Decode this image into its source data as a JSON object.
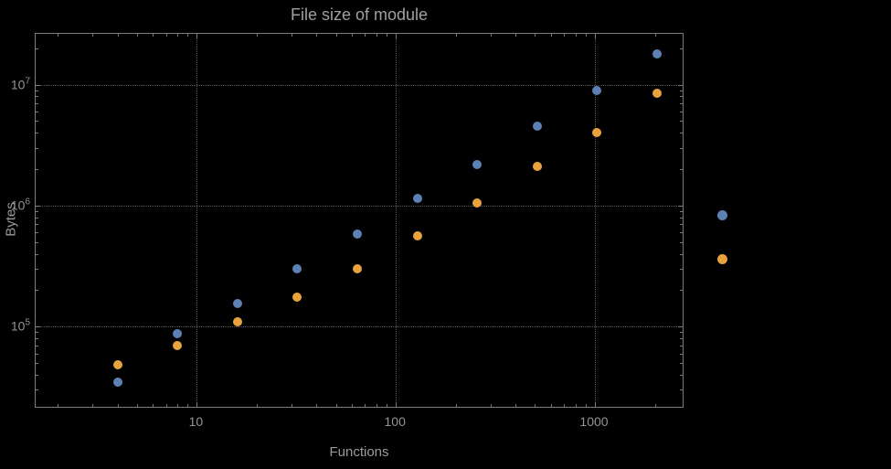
{
  "chart_data": {
    "type": "scatter",
    "title": "File size of module",
    "xlabel": "Functions",
    "ylabel": "Bytes",
    "x_scale": "log",
    "y_scale": "log",
    "grid": "dotted",
    "x_ticks": [
      10,
      100,
      1000
    ],
    "x_tick_labels": [
      "10",
      "100",
      "1000"
    ],
    "y_ticks": [
      100000,
      1000000,
      10000000
    ],
    "y_tick_base": "10",
    "y_tick_exponents": [
      "5",
      "6",
      "7"
    ],
    "x_range": [
      1.55,
      2818
    ],
    "y_range": [
      21000,
      26300000
    ],
    "x": [
      4,
      8,
      16,
      32,
      64,
      128,
      256,
      512,
      1024,
      2048
    ],
    "series": [
      {
        "name": "series-blue",
        "color": "#5E81B5",
        "values": [
          35000,
          88000,
          155000,
          300000,
          580000,
          1150000,
          2200000,
          4500000,
          9000000,
          18000000
        ]
      },
      {
        "name": "series-orange",
        "color": "#E8A33D",
        "values": [
          48000,
          70000,
          110000,
          175000,
          300000,
          560000,
          1050000,
          2100000,
          4000000,
          8500000
        ]
      }
    ],
    "legend": {
      "markers": [
        {
          "color": "#5E81B5"
        },
        {
          "color": "#E8A33D"
        }
      ]
    }
  }
}
